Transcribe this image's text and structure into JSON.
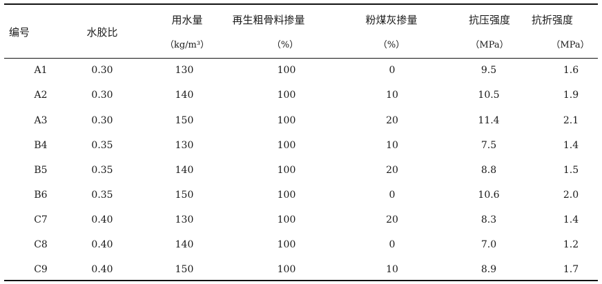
{
  "table": {
    "headers": {
      "id": "编号",
      "wb_ratio": "水胶比",
      "water": "用水量",
      "water_unit": "（kg/m³）",
      "rca": "再生粗骨料掺量",
      "rca_unit": "（%）",
      "flyash": "粉煤灰掺量",
      "flyash_unit": "（%）",
      "compressive": "抗压强度",
      "compressive_unit": "（MPa）",
      "flexural": "抗折强度",
      "flexural_unit": "（MPa）"
    },
    "rows": [
      {
        "id": "A1",
        "wb_ratio": "0.30",
        "water": "130",
        "rca": "100",
        "flyash": "0",
        "compressive": "9.5",
        "flexural": "1.6"
      },
      {
        "id": "A2",
        "wb_ratio": "0.30",
        "water": "140",
        "rca": "100",
        "flyash": "10",
        "compressive": "10.5",
        "flexural": "1.9"
      },
      {
        "id": "A3",
        "wb_ratio": "0.30",
        "water": "150",
        "rca": "100",
        "flyash": "20",
        "compressive": "11.4",
        "flexural": "2.1"
      },
      {
        "id": "B4",
        "wb_ratio": "0.35",
        "water": "130",
        "rca": "100",
        "flyash": "10",
        "compressive": "7.5",
        "flexural": "1.4"
      },
      {
        "id": "B5",
        "wb_ratio": "0.35",
        "water": "140",
        "rca": "100",
        "flyash": "20",
        "compressive": "8.8",
        "flexural": "1.5"
      },
      {
        "id": "B6",
        "wb_ratio": "0.35",
        "water": "150",
        "rca": "100",
        "flyash": "0",
        "compressive": "10.6",
        "flexural": "2.0"
      },
      {
        "id": "C7",
        "wb_ratio": "0.40",
        "water": "130",
        "rca": "100",
        "flyash": "20",
        "compressive": "8.3",
        "flexural": "1.4"
      },
      {
        "id": "C8",
        "wb_ratio": "0.40",
        "water": "140",
        "rca": "100",
        "flyash": "0",
        "compressive": "7.0",
        "flexural": "1.2"
      },
      {
        "id": "C9",
        "wb_ratio": "0.40",
        "water": "150",
        "rca": "100",
        "flyash": "10",
        "compressive": "8.9",
        "flexural": "1.7"
      }
    ]
  }
}
